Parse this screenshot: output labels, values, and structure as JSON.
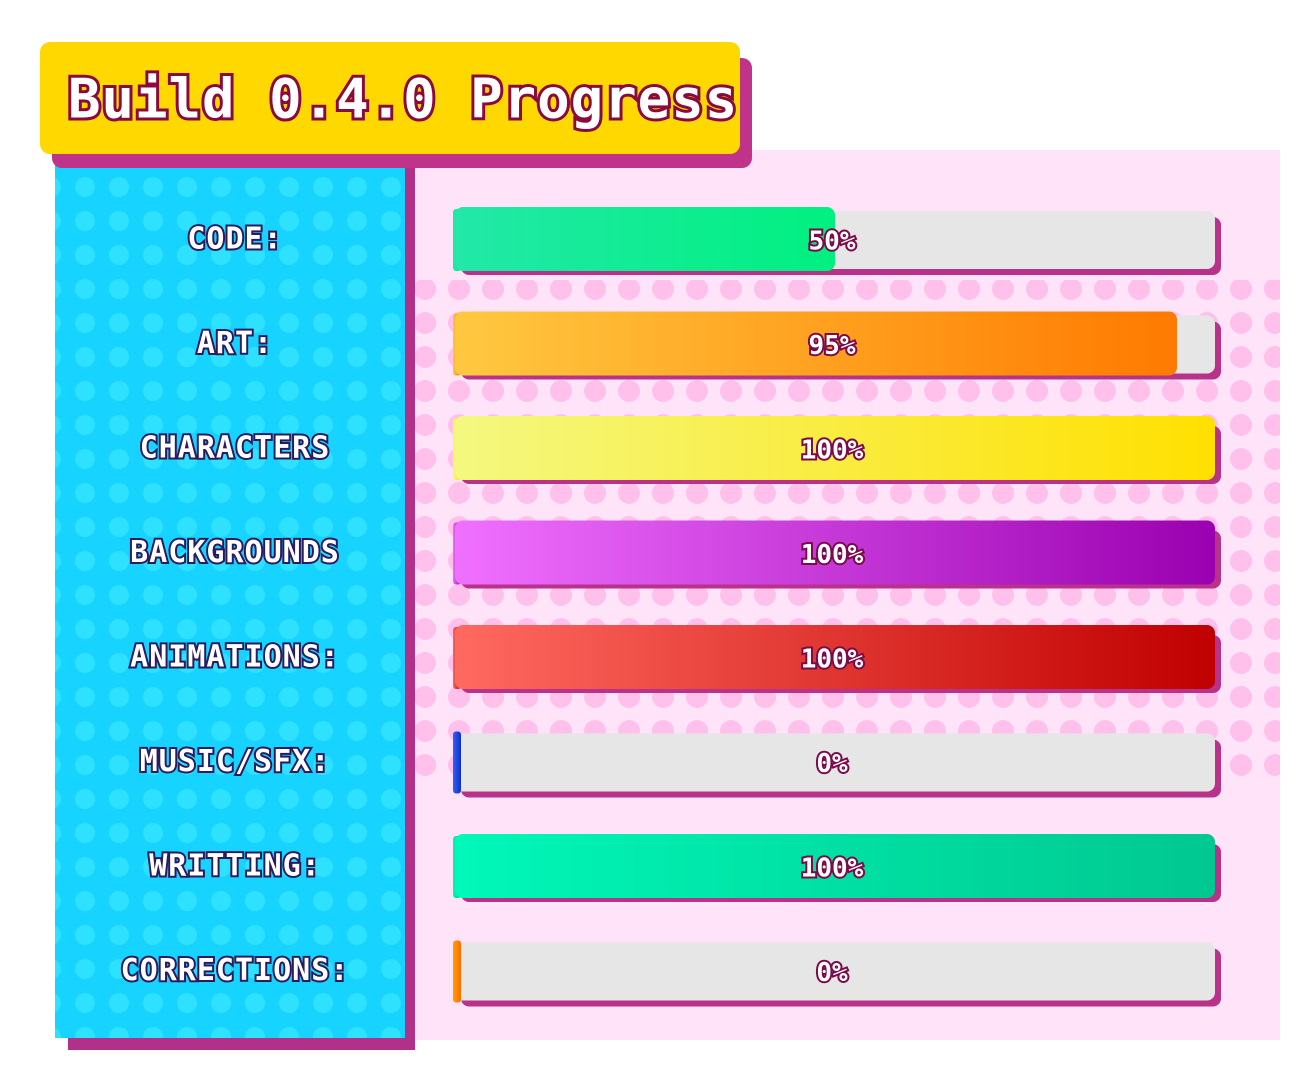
{
  "chart_data": {
    "type": "bar",
    "orientation": "horizontal",
    "title": "Build 0.4.0 Progress",
    "categories": [
      "CODE:",
      "ART:",
      "CHARACTERS",
      "BACKGROUNDS",
      "ANIMATIONS:",
      "MUSIC/SFX:",
      "WRITTING:",
      "CORRECTIONS:"
    ],
    "values": [
      50,
      95,
      100,
      100,
      100,
      0,
      100,
      0
    ],
    "value_labels": [
      "50%",
      "95%",
      "100%",
      "100%",
      "100%",
      "0%",
      "100%",
      "0%"
    ],
    "colors": [
      [
        "#22e8a8",
        "#00f080"
      ],
      [
        "#ffc840",
        "#ff7a00"
      ],
      [
        "#f4f880",
        "#ffe000"
      ],
      [
        "#f070ff",
        "#9a00b0"
      ],
      [
        "#ff6a60",
        "#c00000"
      ],
      [
        "#3060ff",
        "#1030c0"
      ],
      [
        "#00f8b8",
        "#00c890"
      ],
      [
        "#ffa000",
        "#ff6a00"
      ]
    ],
    "xlim": [
      0,
      100
    ]
  }
}
